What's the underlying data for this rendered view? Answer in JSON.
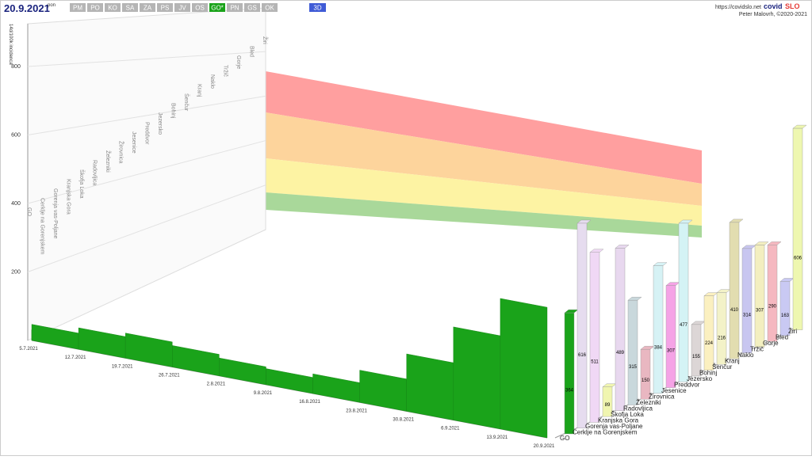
{
  "header": {
    "date": "20.9.2021",
    "weekday": "pon",
    "tabs": [
      "PM",
      "PO",
      "KO",
      "SA",
      "ZA",
      "PS",
      "JV",
      "OS",
      "GO*",
      "PN",
      "GS",
      "OK"
    ],
    "active_tab": 8,
    "view_button": "3D",
    "url": "https://covidslo.net",
    "brand": "covid",
    "brand_suffix": "SLO",
    "author": "Peter Malovrh, ©2020-2021"
  },
  "chart_data": {
    "type": "bar3d",
    "y_label": "14d/100k incidenca",
    "ylim": [
      0,
      800
    ],
    "yticks": [
      200,
      400,
      600,
      800
    ],
    "categories": [
      "GO",
      "Cerklje na Gorenjskem",
      "Gorenja vas-Poljane",
      "Kranjska Gora",
      "Škofja Loka",
      "Radovljica",
      "Železniki",
      "Žirovnica",
      "Jesenice",
      "Preddvor",
      "Jezersko",
      "Bohinj",
      "Šenčur",
      "Kranj",
      "Naklo",
      "Tržič",
      "Gorje",
      "Bled",
      "Žiri"
    ],
    "values": [
      364,
      616,
      511,
      89,
      489,
      315,
      150,
      384,
      307,
      477,
      155,
      224,
      216,
      410,
      314,
      307,
      290,
      163,
      606
    ],
    "colors": [
      "#1aa31a",
      "#e6dcef",
      "#f0d8f5",
      "#f0f5b0",
      "#e8d8ef",
      "#c9d8dc",
      "#e9b7c1",
      "#d6f2f5",
      "#f5a3e6",
      "#d4f3f5",
      "#dcd6d6",
      "#fbf0c0",
      "#f3f2c8",
      "#e2ddb0",
      "#c8c6f0",
      "#f3efc0",
      "#f5b8c0",
      "#c9c9f3",
      "#eef7b0"
    ],
    "history": {
      "x": [
        "5.7.2021",
        "12.7.2021",
        "19.7.2021",
        "26.7.2021",
        "2.8.2021",
        "9.8.2021",
        "16.8.2021",
        "23.8.2021",
        "30.8.2021",
        "6.9.2021",
        "13.9.2021",
        "20.9.2021"
      ],
      "values": [
        30,
        45,
        60,
        70,
        60,
        50,
        45,
        55,
        90,
        160,
        260,
        364
      ],
      "color": "#1aa31a"
    }
  }
}
